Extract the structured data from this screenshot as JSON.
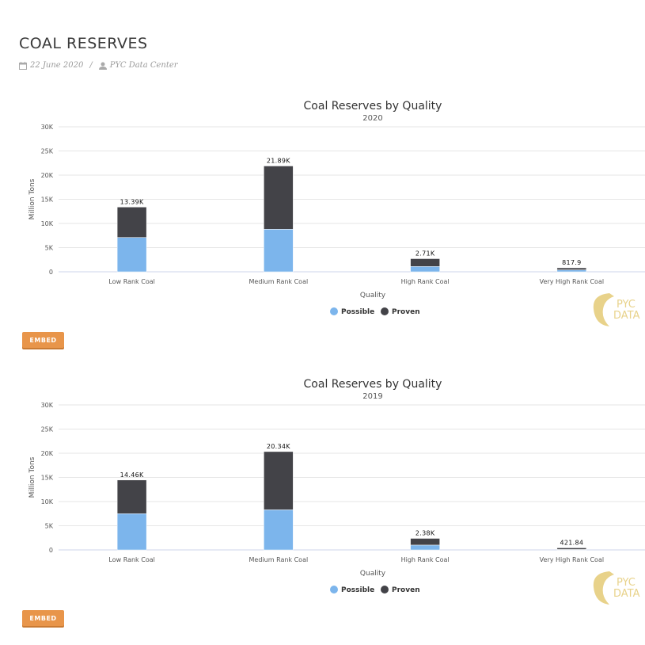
{
  "page": {
    "title": "COAL RESERVES",
    "date": "22 June 2020",
    "author": "PYC Data Center",
    "embed_label": "EMBED",
    "logo_text": [
      "PYC",
      "DATA"
    ]
  },
  "colors": {
    "possible": "#7cb5ec",
    "proven": "#434348",
    "button": "#e8954a",
    "logo": "#e8d28a"
  },
  "chart_data": [
    {
      "type": "bar",
      "stacked": true,
      "title": "Coal Reserves by Quality",
      "subtitle": "2020",
      "xlabel": "Quality",
      "ylabel": "Million Tons",
      "ylim": [
        0,
        30000
      ],
      "yticks": [
        "0",
        "5K",
        "10K",
        "15K",
        "20K",
        "25K",
        "30K"
      ],
      "categories": [
        "Low Rank Coal",
        "Medium Rank Coal",
        "High Rank Coal",
        "Very High Rank Coal"
      ],
      "series": [
        {
          "name": "Possible",
          "values": [
            7100,
            8800,
            1100,
            400
          ]
        },
        {
          "name": "Proven",
          "values": [
            6290,
            13090,
            1610,
            417.9
          ]
        }
      ],
      "totals": [
        "13.39K",
        "21.89K",
        "2.71K",
        "817.9"
      ],
      "legend": "bottom-center",
      "grid": true
    },
    {
      "type": "bar",
      "stacked": true,
      "title": "Coal Reserves by Quality",
      "subtitle": "2019",
      "xlabel": "Quality",
      "ylabel": "Million Tons",
      "ylim": [
        0,
        30000
      ],
      "yticks": [
        "0",
        "5K",
        "10K",
        "15K",
        "20K",
        "25K",
        "30K"
      ],
      "categories": [
        "Low Rank Coal",
        "Medium Rank Coal",
        "High Rank Coal",
        "Very High Rank Coal"
      ],
      "series": [
        {
          "name": "Possible",
          "values": [
            7500,
            8300,
            1000,
            90
          ]
        },
        {
          "name": "Proven",
          "values": [
            6960,
            12040,
            1380,
            331.84
          ]
        }
      ],
      "totals": [
        "14.46K",
        "20.34K",
        "2.38K",
        "421.84"
      ],
      "legend": "bottom-center",
      "grid": true
    }
  ]
}
